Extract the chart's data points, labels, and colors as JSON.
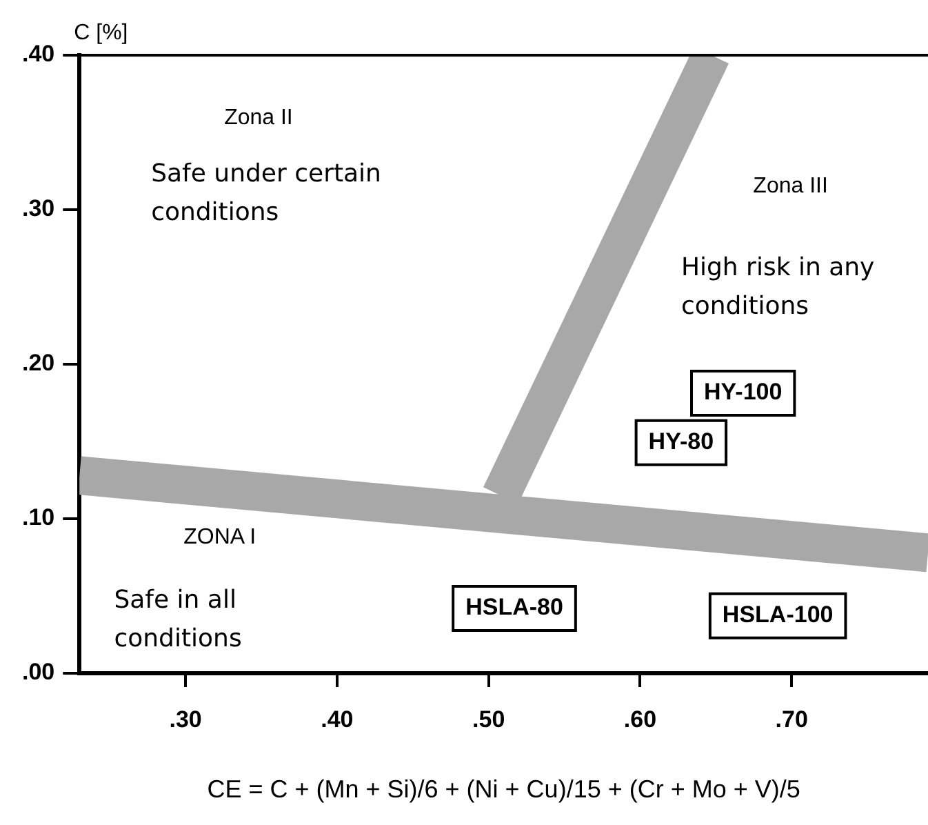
{
  "chart_data": {
    "type": "line",
    "xlabel": "CE = C + (Mn + Si)/6 + (Ni + Cu)/15 + (Cr + Mo + V)/5",
    "ylabel": "C [%]",
    "xlim": [
      0.23,
      0.79
    ],
    "ylim": [
      0,
      0.4
    ],
    "xticks": [
      {
        "value": 0.3,
        "label": ".30"
      },
      {
        "value": 0.4,
        "label": ".40"
      },
      {
        "value": 0.5,
        "label": ".50"
      },
      {
        "value": 0.6,
        "label": ".60"
      },
      {
        "value": 0.7,
        "label": ".70"
      }
    ],
    "yticks": [
      {
        "value": 0,
        "label": ".00"
      },
      {
        "value": 0.1,
        "label": ".10"
      },
      {
        "value": 0.2,
        "label": ".20"
      },
      {
        "value": 0.3,
        "label": ".30"
      },
      {
        "value": 0.4,
        "label": ".40"
      }
    ],
    "series": [
      {
        "color": "#a8a8a8",
        "x": [
          0.23,
          0.79
        ],
        "values": [
          0.128,
          0.078
        ]
      },
      {
        "color": "#a8a8a8",
        "x": [
          0.508,
          0.647
        ],
        "values": [
          0.115,
          0.4
        ]
      }
    ],
    "marker": "none",
    "grid": false,
    "legend": false,
    "annotations": [
      "Zona II",
      "Safe under certain\nconditions",
      "Zona III",
      "High risk in any\nconditions",
      "ZONA I",
      "Safe in all\nconditions",
      "HY-100",
      "HY-80",
      "HSLA-80",
      "HSLA-100"
    ]
  }
}
